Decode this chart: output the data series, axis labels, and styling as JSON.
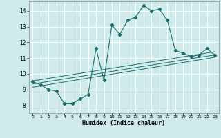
{
  "xlabel": "Humidex (Indice chaleur)",
  "ylabel": "",
  "background_color": "#ceeaea",
  "grid_color": "#b8d8d8",
  "line_color": "#1a6b6b",
  "xlim": [
    -0.5,
    23.5
  ],
  "ylim": [
    7.5,
    14.6
  ],
  "yticks": [
    8,
    9,
    10,
    11,
    12,
    13,
    14
  ],
  "xticks": [
    0,
    1,
    2,
    3,
    4,
    5,
    6,
    7,
    8,
    9,
    10,
    11,
    12,
    13,
    14,
    15,
    16,
    17,
    18,
    19,
    20,
    21,
    22,
    23
  ],
  "main_line": {
    "x": [
      0,
      1,
      2,
      3,
      4,
      5,
      6,
      7,
      8,
      9,
      10,
      11,
      12,
      13,
      14,
      15,
      16,
      17,
      18,
      19,
      20,
      21,
      22,
      23
    ],
    "y": [
      9.5,
      9.3,
      9.0,
      8.9,
      8.1,
      8.1,
      8.4,
      8.7,
      11.6,
      9.6,
      13.1,
      12.5,
      13.4,
      13.6,
      14.35,
      14.0,
      14.1,
      13.4,
      11.5,
      11.3,
      11.1,
      11.2,
      11.6,
      11.2
    ]
  },
  "linear_lines": [
    {
      "x": [
        0,
        23
      ],
      "y": [
        9.15,
        11.05
      ]
    },
    {
      "x": [
        0,
        23
      ],
      "y": [
        9.35,
        11.2
      ]
    },
    {
      "x": [
        0,
        23
      ],
      "y": [
        9.55,
        11.4
      ]
    }
  ]
}
